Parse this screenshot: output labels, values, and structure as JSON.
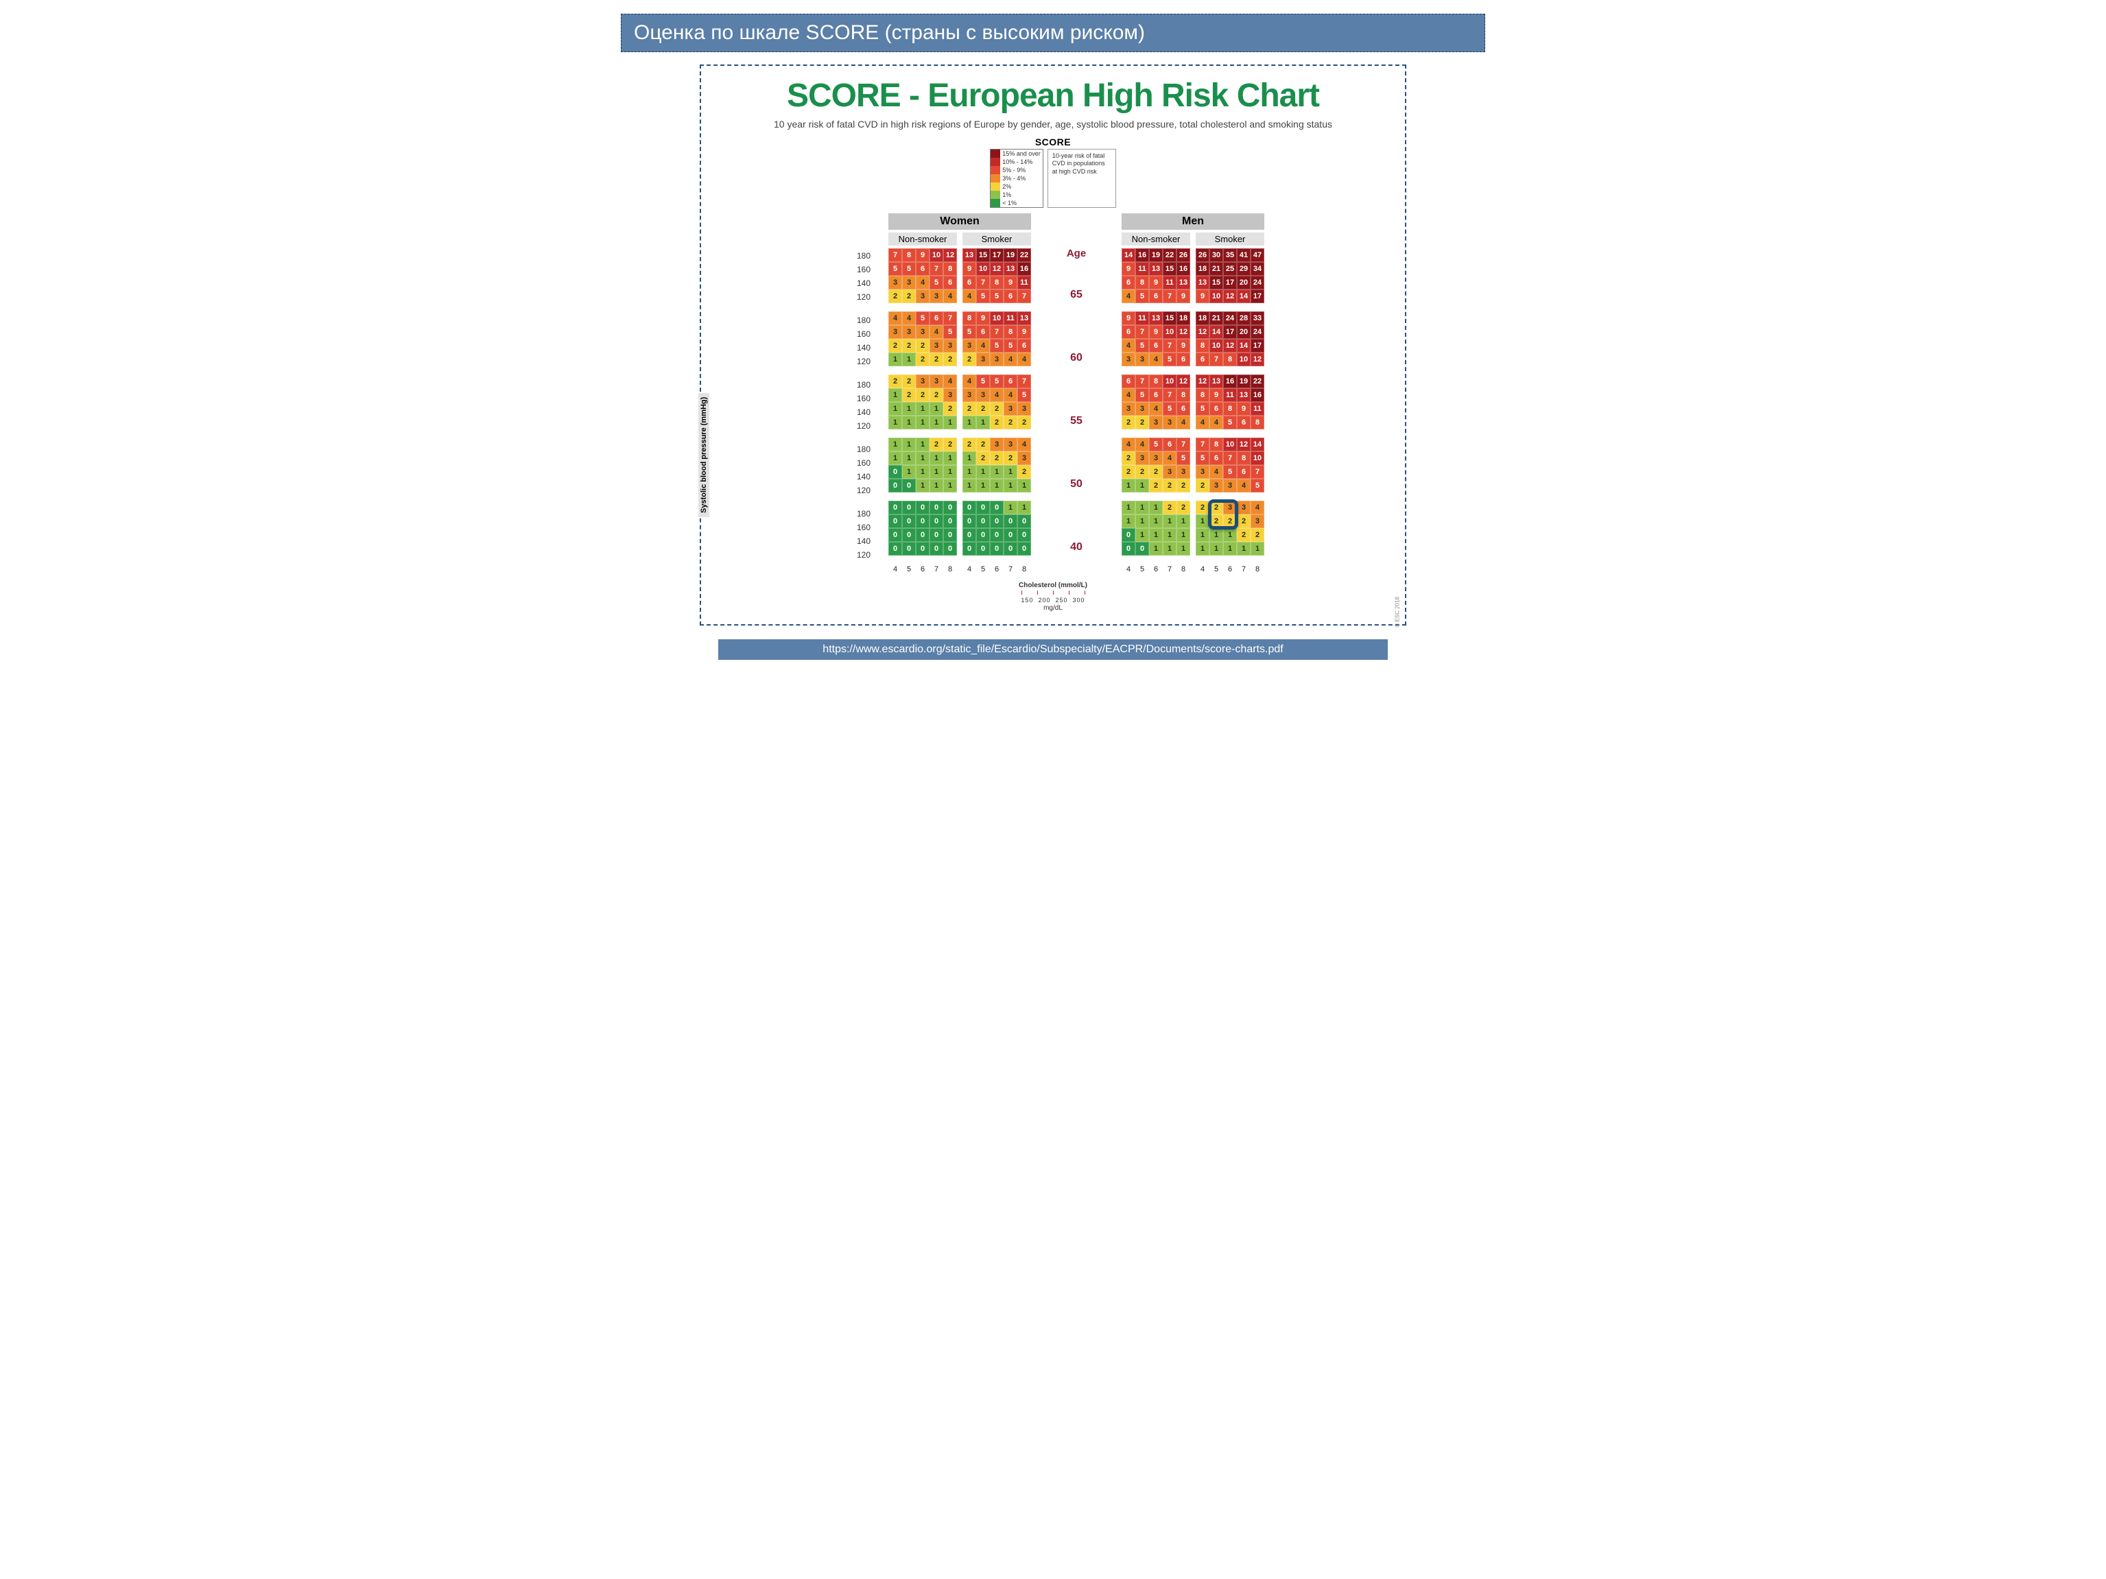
{
  "slide_title": "Оценка по шкале SCORE (страны с высоким риском)",
  "chart_title": "SCORE - European High Risk Chart",
  "chart_subtitle": "10 year risk of fatal CVD in high risk regions of Europe by gender, age, systolic blood pressure, total cholesterol and smoking status",
  "score_label": "SCORE",
  "legend": {
    "levels": [
      {
        "label": "15% and over",
        "color": "#8a1419"
      },
      {
        "label": "10% - 14%",
        "color": "#c22a2a"
      },
      {
        "label": "5% - 9%",
        "color": "#e34b35"
      },
      {
        "label": "3% - 4%",
        "color": "#ef8a2c"
      },
      {
        "label": "2%",
        "color": "#f6d23a"
      },
      {
        "label": "1%",
        "color": "#8fc24c"
      },
      {
        "label": "< 1%",
        "color": "#2c9a4b"
      }
    ],
    "info_text": "10-year risk of fatal CVD in populations at high CVD risk"
  },
  "headers": {
    "women": "Women",
    "men": "Men",
    "non_smoker": "Non-smoker",
    "smoker": "Smoker",
    "age": "Age",
    "bp_axis": "Systolic blood pressure (mmHg)",
    "chol_title": "Cholesterol (mmol/L)",
    "chol_sub": "mg/dL",
    "chol_mgdl": [
      "150",
      "200",
      "250",
      "300"
    ],
    "esc": "© ESC 2018"
  },
  "ages": [
    "65",
    "60",
    "55",
    "50",
    "40"
  ],
  "bp": [
    "180",
    "160",
    "140",
    "120"
  ],
  "chol": [
    "4",
    "5",
    "6",
    "7",
    "8"
  ],
  "colors": {
    "g0": "#2c9a4b",
    "g1": "#8fc24c",
    "y": "#f6d23a",
    "o": "#ef8a2c",
    "r": "#e34b35",
    "rr": "#c22a2a",
    "dr": "#8a1419",
    "text_dark": "#25301f",
    "text_light": "#ffffff"
  },
  "blocks": {
    "women_ns": {
      "65": [
        [
          7,
          8,
          9,
          10,
          12
        ],
        [
          5,
          5,
          6,
          7,
          8
        ],
        [
          3,
          3,
          4,
          5,
          6
        ],
        [
          2,
          2,
          3,
          3,
          4
        ]
      ],
      "60": [
        [
          4,
          4,
          5,
          6,
          7
        ],
        [
          3,
          3,
          3,
          4,
          5
        ],
        [
          2,
          2,
          2,
          3,
          3
        ],
        [
          1,
          1,
          2,
          2,
          2
        ]
      ],
      "55": [
        [
          2,
          2,
          3,
          3,
          4
        ],
        [
          1,
          2,
          2,
          2,
          3
        ],
        [
          1,
          1,
          1,
          1,
          2
        ],
        [
          1,
          1,
          1,
          1,
          1
        ]
      ],
      "50": [
        [
          1,
          1,
          1,
          2,
          2
        ],
        [
          1,
          1,
          1,
          1,
          1
        ],
        [
          0,
          1,
          1,
          1,
          1
        ],
        [
          0,
          0,
          1,
          1,
          1
        ]
      ],
      "40": [
        [
          0,
          0,
          0,
          0,
          0
        ],
        [
          0,
          0,
          0,
          0,
          0
        ],
        [
          0,
          0,
          0,
          0,
          0
        ],
        [
          0,
          0,
          0,
          0,
          0
        ]
      ]
    },
    "women_sm": {
      "65": [
        [
          13,
          15,
          17,
          19,
          22
        ],
        [
          9,
          10,
          12,
          13,
          16
        ],
        [
          6,
          7,
          8,
          9,
          11
        ],
        [
          4,
          5,
          5,
          6,
          7
        ]
      ],
      "60": [
        [
          8,
          9,
          10,
          11,
          13
        ],
        [
          5,
          6,
          7,
          8,
          9
        ],
        [
          3,
          4,
          5,
          5,
          6
        ],
        [
          2,
          3,
          3,
          4,
          4
        ]
      ],
      "55": [
        [
          4,
          5,
          5,
          6,
          7
        ],
        [
          3,
          3,
          4,
          4,
          5
        ],
        [
          2,
          2,
          2,
          3,
          3
        ],
        [
          1,
          1,
          2,
          2,
          2
        ]
      ],
      "50": [
        [
          2,
          2,
          3,
          3,
          4
        ],
        [
          1,
          2,
          2,
          2,
          3
        ],
        [
          1,
          1,
          1,
          1,
          2
        ],
        [
          1,
          1,
          1,
          1,
          1
        ]
      ],
      "40": [
        [
          0,
          0,
          0,
          1,
          1
        ],
        [
          0,
          0,
          0,
          0,
          0
        ],
        [
          0,
          0,
          0,
          0,
          0
        ],
        [
          0,
          0,
          0,
          0,
          0
        ]
      ]
    },
    "men_ns": {
      "65": [
        [
          14,
          16,
          19,
          22,
          26
        ],
        [
          9,
          11,
          13,
          15,
          16
        ],
        [
          6,
          8,
          9,
          11,
          13
        ],
        [
          4,
          5,
          6,
          7,
          9
        ]
      ],
      "60": [
        [
          9,
          11,
          13,
          15,
          18
        ],
        [
          6,
          7,
          9,
          10,
          12
        ],
        [
          4,
          5,
          6,
          7,
          9
        ],
        [
          3,
          3,
          4,
          5,
          6
        ]
      ],
      "55": [
        [
          6,
          7,
          8,
          10,
          12
        ],
        [
          4,
          5,
          6,
          7,
          8
        ],
        [
          3,
          3,
          4,
          5,
          6
        ],
        [
          2,
          2,
          3,
          3,
          4
        ]
      ],
      "50": [
        [
          4,
          4,
          5,
          6,
          7
        ],
        [
          2,
          3,
          3,
          4,
          5
        ],
        [
          2,
          2,
          2,
          3,
          3
        ],
        [
          1,
          1,
          2,
          2,
          2
        ]
      ],
      "40": [
        [
          1,
          1,
          1,
          2,
          2
        ],
        [
          1,
          1,
          1,
          1,
          1
        ],
        [
          0,
          1,
          1,
          1,
          1
        ],
        [
          0,
          0,
          1,
          1,
          1
        ]
      ]
    },
    "men_sm": {
      "65": [
        [
          26,
          30,
          35,
          41,
          47
        ],
        [
          18,
          21,
          25,
          29,
          34
        ],
        [
          13,
          15,
          17,
          20,
          24
        ],
        [
          9,
          10,
          12,
          14,
          17
        ]
      ],
      "60": [
        [
          18,
          21,
          24,
          28,
          33
        ],
        [
          12,
          14,
          17,
          20,
          24
        ],
        [
          8,
          10,
          12,
          14,
          17
        ],
        [
          6,
          7,
          8,
          10,
          12
        ]
      ],
      "55": [
        [
          12,
          13,
          16,
          19,
          22
        ],
        [
          8,
          9,
          11,
          13,
          16
        ],
        [
          5,
          6,
          8,
          9,
          11
        ],
        [
          4,
          4,
          5,
          6,
          8
        ]
      ],
      "50": [
        [
          7,
          8,
          10,
          12,
          14
        ],
        [
          5,
          6,
          7,
          8,
          10
        ],
        [
          3,
          4,
          5,
          6,
          7
        ],
        [
          2,
          3,
          3,
          4,
          5
        ]
      ],
      "40": [
        [
          2,
          2,
          3,
          3,
          4
        ],
        [
          1,
          2,
          2,
          2,
          3
        ],
        [
          1,
          1,
          1,
          2,
          2
        ],
        [
          1,
          1,
          1,
          1,
          1
        ]
      ]
    }
  },
  "highlight": {
    "block": "men_sm",
    "age": "40",
    "bp_rows": [
      0,
      1
    ],
    "cols": [
      1,
      2
    ]
  },
  "footer": "https://www.escardio.org/static_file/Escardio/Subspecialty/EACPR/Documents/score-charts.pdf"
}
